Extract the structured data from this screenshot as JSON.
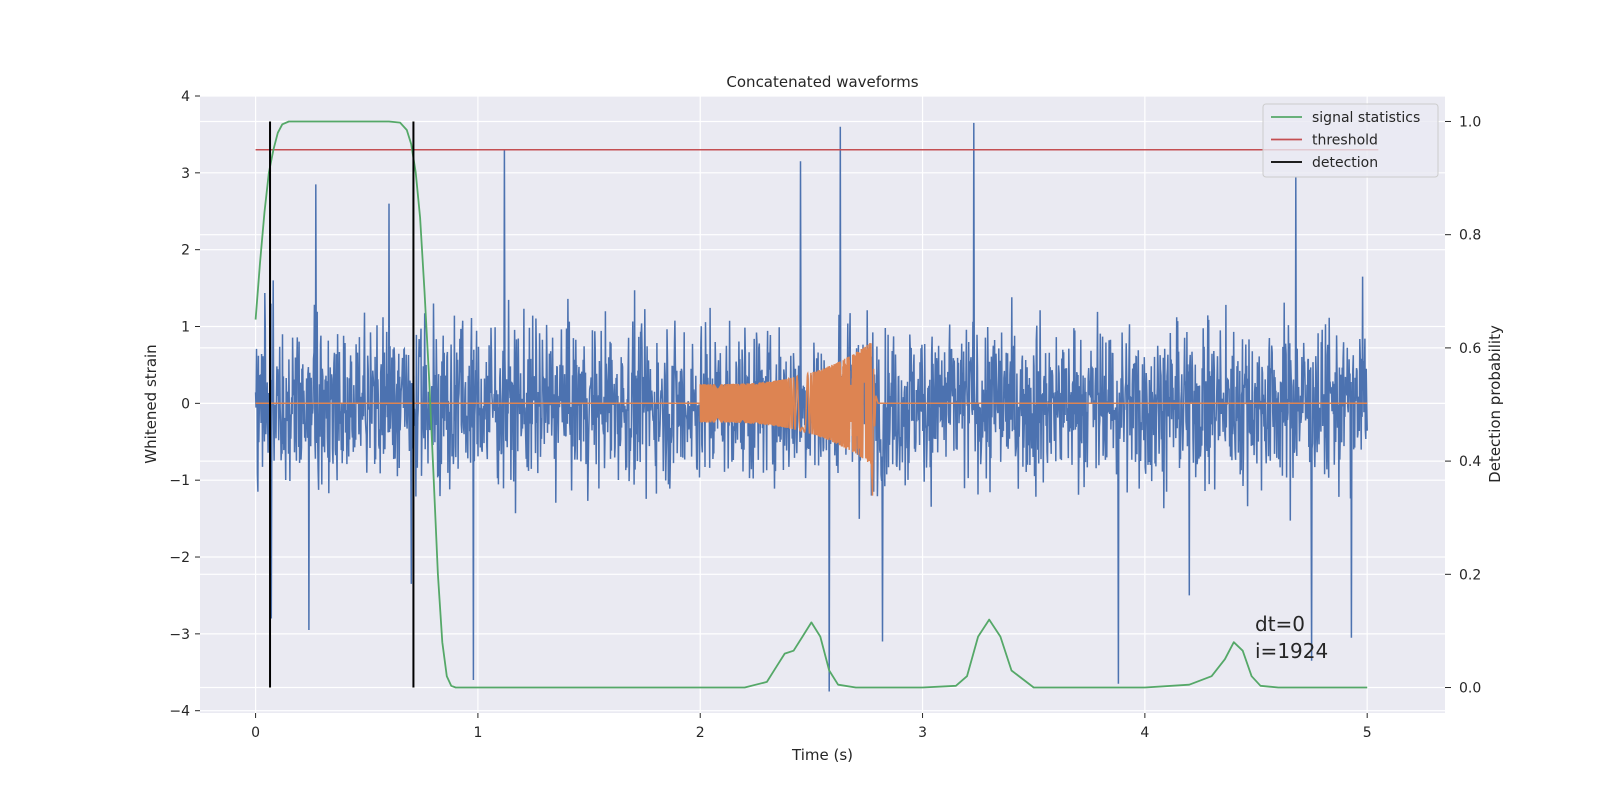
{
  "chart_data": {
    "type": "line",
    "title": "Concatenated waveforms",
    "xlabel": "Time (s)",
    "ylabel": "Whitened strain",
    "y2label": "Detection probability",
    "xlim": [
      -0.25,
      5.35
    ],
    "ylim": [
      -4.03,
      4.0
    ],
    "y2lim": [
      -0.045,
      1.045
    ],
    "x_ticks": [
      0,
      1,
      2,
      3,
      4,
      5
    ],
    "y_ticks": [
      4,
      3,
      2,
      1,
      0,
      -1,
      -2,
      -3,
      -4
    ],
    "y_tick_labels": [
      "4",
      "3",
      "2",
      "1",
      "0",
      "−1",
      "−2",
      "−3",
      "−4"
    ],
    "y2_ticks": [
      1.0,
      0.8,
      0.6,
      0.4,
      0.2,
      0.0
    ],
    "y2_tick_labels": [
      "1.0",
      "0.8",
      "0.6",
      "0.4",
      "0.2",
      "0.0"
    ],
    "grid": true,
    "legend_position": "top-right",
    "legend": [
      {
        "name": "signal statistics",
        "color": "#55a868"
      },
      {
        "name": "threshold",
        "color": "#c44e52"
      },
      {
        "name": "detection",
        "color": "#000000"
      }
    ],
    "series": [
      {
        "name": "whitened strain (noise)",
        "color": "#4c72b0",
        "axis": "left",
        "kind": "noise",
        "x_range": [
          0,
          5
        ],
        "typical_amplitude": 1.0,
        "peak_samples": [
          [
            0.01,
            2.1
          ],
          [
            0.01,
            -1.15
          ],
          [
            0.07,
            -2.8
          ],
          [
            0.08,
            1.6
          ],
          [
            0.24,
            -2.95
          ],
          [
            0.27,
            2.85
          ],
          [
            0.6,
            2.6
          ],
          [
            0.7,
            -2.35
          ],
          [
            0.8,
            1.3
          ],
          [
            0.98,
            -3.6
          ],
          [
            1.12,
            3.3
          ],
          [
            2.45,
            3.15
          ],
          [
            2.58,
            -3.75
          ],
          [
            2.63,
            3.6
          ],
          [
            2.77,
            -1.2
          ],
          [
            2.82,
            -3.1
          ],
          [
            3.23,
            3.65
          ],
          [
            3.88,
            -3.65
          ],
          [
            4.2,
            -2.5
          ],
          [
            4.68,
            2.95
          ],
          [
            4.75,
            -3.35
          ],
          [
            4.93,
            -3.05
          ],
          [
            4.98,
            1.65
          ]
        ]
      },
      {
        "name": "injected waveform",
        "color": "#dd8452",
        "axis": "left",
        "kind": "chirp",
        "start": 2.0,
        "merger": 2.77,
        "start_amplitude": 0.25,
        "peak_amplitude": 0.8,
        "min_amplitude": -1.2
      },
      {
        "name": "signal statistics",
        "color": "#55a868",
        "axis": "right",
        "x": [
          0,
          0.02,
          0.04,
          0.06,
          0.08,
          0.1,
          0.12,
          0.15,
          0.2,
          0.3,
          0.4,
          0.5,
          0.6,
          0.65,
          0.68,
          0.7,
          0.72,
          0.74,
          0.76,
          0.78,
          0.8,
          0.82,
          0.84,
          0.86,
          0.88,
          0.9,
          1.0,
          2.0,
          2.2,
          2.3,
          2.34,
          2.38,
          2.42,
          2.46,
          2.5,
          2.54,
          2.58,
          2.62,
          2.7,
          3.0,
          3.15,
          3.2,
          3.25,
          3.3,
          3.35,
          3.4,
          3.5,
          4.0,
          4.2,
          4.3,
          4.36,
          4.4,
          4.44,
          4.48,
          4.52,
          4.6,
          5.0
        ],
        "y": [
          0.65,
          0.75,
          0.84,
          0.91,
          0.95,
          0.98,
          0.995,
          1.0,
          1.0,
          1.0,
          1.0,
          1.0,
          1.0,
          0.998,
          0.985,
          0.96,
          0.91,
          0.83,
          0.7,
          0.55,
          0.38,
          0.2,
          0.08,
          0.02,
          0.003,
          0.0,
          0.0,
          0.0,
          0.0,
          0.01,
          0.035,
          0.06,
          0.065,
          0.09,
          0.115,
          0.09,
          0.03,
          0.005,
          0.0,
          0.0,
          0.003,
          0.02,
          0.09,
          0.12,
          0.09,
          0.03,
          0.0,
          0.0,
          0.005,
          0.02,
          0.05,
          0.08,
          0.065,
          0.02,
          0.003,
          0.0,
          0.0
        ]
      },
      {
        "name": "threshold",
        "color": "#c44e52",
        "axis": "right",
        "x": [
          0,
          5.05
        ],
        "y": [
          0.95,
          0.95
        ]
      }
    ],
    "detections": [
      {
        "name": "detection",
        "x": 0.065,
        "y2": [
          0.0,
          1.0
        ]
      },
      {
        "name": "detection",
        "x": 0.71,
        "y2": [
          0.0,
          1.0
        ]
      }
    ],
    "annotations": [
      "dt=0",
      "i=1924"
    ]
  }
}
